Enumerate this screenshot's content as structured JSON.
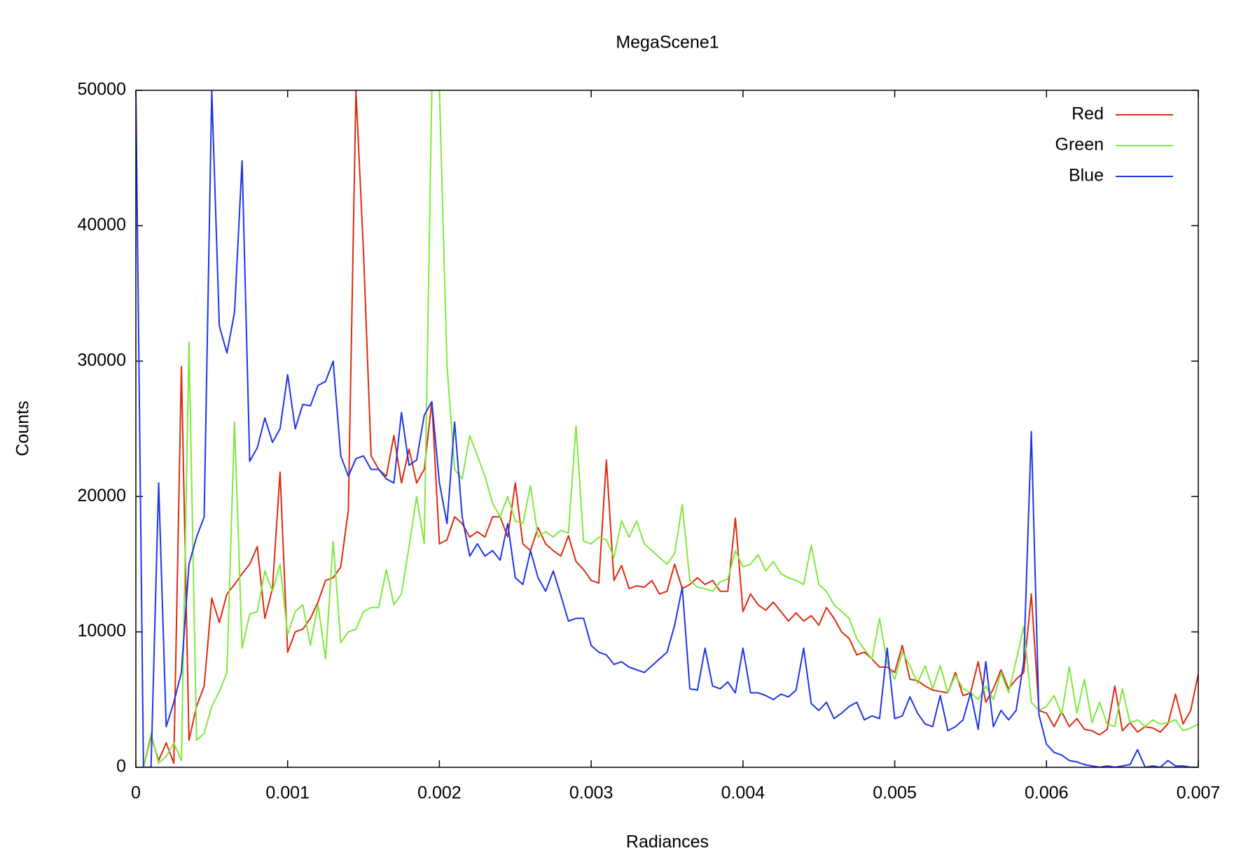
{
  "chart_data": {
    "type": "line",
    "title": "MegaScene1",
    "xlabel": "Radiances",
    "ylabel": "Counts",
    "xlim": [
      0,
      0.007
    ],
    "ylim": [
      0,
      50000
    ],
    "xticks": [
      0,
      0.001,
      0.002,
      0.003,
      0.004,
      0.005,
      0.006,
      0.007
    ],
    "yticks": [
      0,
      10000,
      20000,
      30000,
      40000,
      50000
    ],
    "legend": "upper-right",
    "x": [
      0,
      5e-05,
      0.0001,
      0.00015,
      0.0002,
      0.00025,
      0.0003,
      0.00035,
      0.0004,
      0.00045,
      0.0005,
      0.00055,
      0.0006,
      0.00065,
      0.0007,
      0.00075,
      0.0008,
      0.00085,
      0.0009,
      0.00095,
      0.001,
      0.00105,
      0.0011,
      0.00115,
      0.0012,
      0.00125,
      0.0013,
      0.00135,
      0.0014,
      0.00145,
      0.0015,
      0.00155,
      0.0016,
      0.00165,
      0.0017,
      0.00175,
      0.0018,
      0.00185,
      0.0019,
      0.00195,
      0.002,
      0.00205,
      0.0021,
      0.00215,
      0.0022,
      0.00225,
      0.0023,
      0.00235,
      0.0024,
      0.00245,
      0.0025,
      0.00255,
      0.0026,
      0.00265,
      0.0027,
      0.00275,
      0.0028,
      0.00285,
      0.0029,
      0.00295,
      0.003,
      0.00305,
      0.0031,
      0.00315,
      0.0032,
      0.00325,
      0.0033,
      0.00335,
      0.0034,
      0.00345,
      0.0035,
      0.00355,
      0.0036,
      0.00365,
      0.0037,
      0.00375,
      0.0038,
      0.00385,
      0.0039,
      0.00395,
      0.004,
      0.00405,
      0.0041,
      0.00415,
      0.0042,
      0.00425,
      0.0043,
      0.00435,
      0.0044,
      0.00445,
      0.0045,
      0.00455,
      0.0046,
      0.00465,
      0.0047,
      0.00475,
      0.0048,
      0.00485,
      0.0049,
      0.00495,
      0.005,
      0.00505,
      0.0051,
      0.00515,
      0.0052,
      0.00525,
      0.0053,
      0.00535,
      0.0054,
      0.00545,
      0.0055,
      0.00555,
      0.0056,
      0.00565,
      0.0057,
      0.00575,
      0.0058,
      0.00585,
      0.0059,
      0.00595,
      0.006,
      0.00605,
      0.0061,
      0.00615,
      0.0062,
      0.00625,
      0.0063,
      0.00635,
      0.0064,
      0.00645,
      0.0065,
      0.00655,
      0.0066,
      0.00665,
      0.0067,
      0.00675,
      0.0068,
      0.00685,
      0.0069,
      0.00695,
      0.007
    ],
    "series": [
      {
        "name": "Red",
        "color": "#dd2a10",
        "values": [
          0,
          0,
          2300,
          500,
          1800,
          300,
          29600,
          2000,
          4500,
          6000,
          12500,
          10700,
          12800,
          13500,
          14300,
          15000,
          16300,
          11000,
          13200,
          21800,
          8500,
          10000,
          10200,
          11000,
          12200,
          13800,
          14000,
          14800,
          19000,
          50000,
          38000,
          23000,
          22000,
          21500,
          24500,
          21000,
          23500,
          21000,
          22000,
          27000,
          16500,
          16800,
          18500,
          18000,
          17000,
          17400,
          17000,
          18500,
          18500,
          17000,
          21000,
          16500,
          16000,
          17700,
          16500,
          16000,
          15600,
          17100,
          15200,
          14600,
          13800,
          13600,
          22700,
          13800,
          14900,
          13200,
          13400,
          13300,
          13800,
          12800,
          13000,
          15000,
          13200,
          13500,
          14000,
          13500,
          13800,
          13000,
          13000,
          18400,
          11500,
          12800,
          12000,
          11600,
          12200,
          11500,
          10800,
          11400,
          10800,
          11200,
          10500,
          11800,
          11000,
          10000,
          9500,
          8300,
          8500,
          8000,
          7400,
          7400,
          7000,
          9000,
          6500,
          6400,
          6000,
          5700,
          5600,
          5500,
          7000,
          5300,
          5500,
          7800,
          4800,
          5800,
          7200,
          5800,
          6500,
          7000,
          12800,
          4200,
          4000,
          3000,
          4100,
          3000,
          3600,
          2800,
          2700,
          2400,
          2800,
          6000,
          2700,
          3300,
          2600,
          3000,
          2900,
          2600,
          3200,
          5400,
          3200,
          4200,
          6900
        ]
      },
      {
        "name": "Green",
        "color": "#7fe83c",
        "values": [
          0,
          0,
          2500,
          300,
          800,
          1800,
          500,
          31400,
          2000,
          2500,
          4500,
          5600,
          7000,
          25500,
          8800,
          11300,
          11500,
          14500,
          13000,
          15000,
          9800,
          11500,
          12000,
          9000,
          12000,
          8000,
          16700,
          9200,
          10000,
          10200,
          11500,
          11800,
          11800,
          14600,
          12000,
          12800,
          16300,
          20000,
          16500,
          50000,
          50000,
          29700,
          22000,
          21300,
          24500,
          23000,
          21500,
          19500,
          18500,
          20000,
          18200,
          18000,
          20800,
          17000,
          17400,
          17000,
          17500,
          17300,
          25200,
          16700,
          16500,
          17000,
          16800,
          15500,
          18200,
          17000,
          18200,
          16500,
          16000,
          15500,
          15000,
          15800,
          19400,
          13800,
          13300,
          13200,
          13000,
          13700,
          13900,
          16000,
          14800,
          15000,
          15700,
          14500,
          15200,
          14300,
          14000,
          13800,
          13500,
          16400,
          13500,
          13000,
          12000,
          11500,
          11000,
          9500,
          8700,
          8000,
          11000,
          7700,
          6500,
          8500,
          7500,
          6200,
          7500,
          5800,
          7500,
          5500,
          6800,
          5800,
          5500,
          5000,
          6000,
          5000,
          7000,
          5500,
          7900,
          10400,
          4800,
          4200,
          4500,
          5300,
          3900,
          7400,
          4000,
          6500,
          3300,
          4800,
          3200,
          3000,
          5800,
          3300,
          3500,
          3000,
          3500,
          3200,
          3300,
          3500,
          2700,
          2900,
          3200
        ]
      },
      {
        "name": "Blue",
        "color": "#1d34e6",
        "values": [
          50000,
          0,
          0,
          21000,
          3000,
          4800,
          7000,
          15000,
          17000,
          18500,
          50000,
          32600,
          30600,
          33600,
          44800,
          22600,
          23600,
          25800,
          24000,
          25000,
          29000,
          25000,
          26800,
          26700,
          28200,
          28500,
          30000,
          23000,
          21500,
          22800,
          23000,
          22000,
          22000,
          21300,
          21000,
          26200,
          22300,
          22700,
          26000,
          27000,
          21000,
          18000,
          25500,
          18500,
          15600,
          16500,
          15600,
          16000,
          15300,
          18000,
          14000,
          13500,
          16000,
          14000,
          13000,
          14500,
          12700,
          10800,
          11000,
          11000,
          9000,
          8500,
          8300,
          7600,
          7800,
          7400,
          7200,
          7000,
          7500,
          8000,
          8500,
          10500,
          13300,
          5800,
          5700,
          8800,
          6000,
          5800,
          6300,
          5500,
          8800,
          5500,
          5500,
          5300,
          5000,
          5400,
          5200,
          5700,
          8800,
          4700,
          4200,
          4800,
          3600,
          4000,
          4500,
          4800,
          3500,
          3800,
          3600,
          8800,
          3600,
          3800,
          5200,
          4000,
          3200,
          3000,
          5300,
          2700,
          3000,
          3500,
          5500,
          2800,
          7800,
          3000,
          4200,
          3500,
          4200,
          7800,
          24800,
          3900,
          1700,
          1100,
          900,
          500,
          400,
          200,
          100,
          0,
          100,
          0,
          100,
          200,
          1300,
          0,
          100,
          0,
          500,
          100,
          100,
          0,
          0
        ]
      }
    ]
  }
}
